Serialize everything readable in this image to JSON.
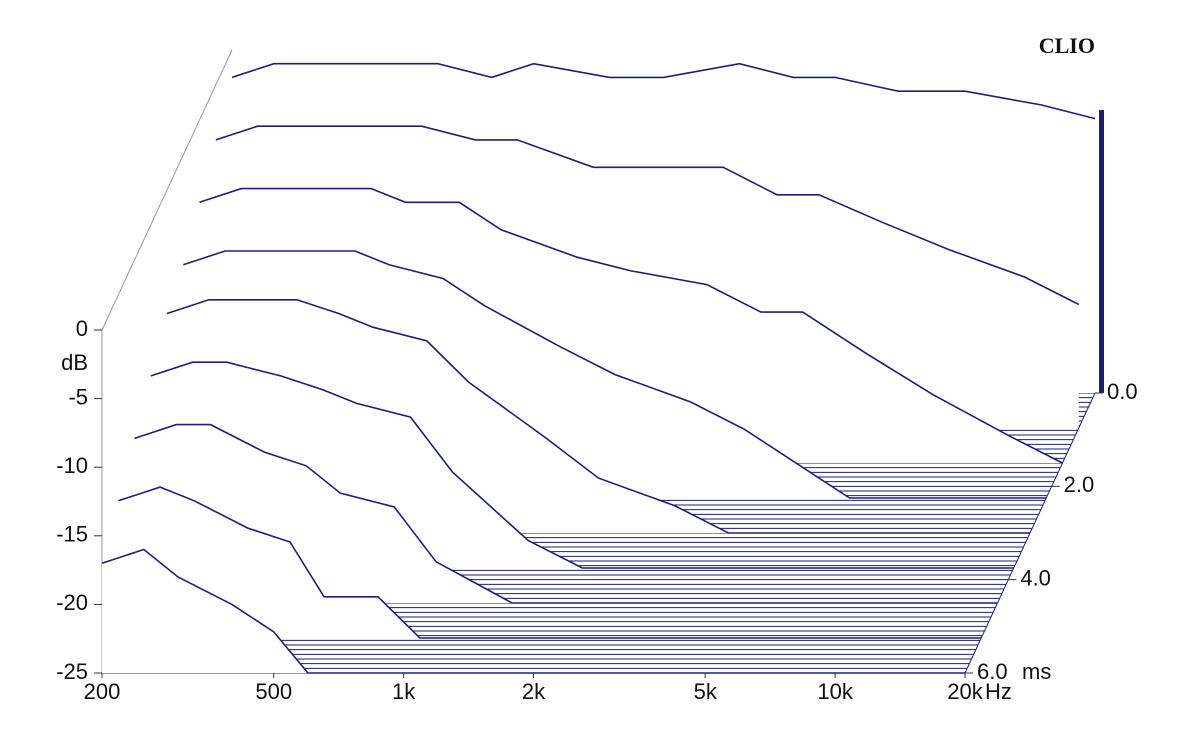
{
  "chart_data": {
    "type": "waterfall",
    "watermark": "CLIO",
    "x_unit": "Hz",
    "y_unit": "dB",
    "z_unit": "ms",
    "color": "#1e1e78",
    "log_x": true,
    "x": [
      200,
      250,
      300,
      400,
      500,
      600,
      800,
      1000,
      1500,
      2000,
      3000,
      4000,
      5000,
      7000,
      10000,
      15000,
      20000
    ],
    "z": [
      0,
      0.75,
      1.5,
      2.25,
      3,
      3.75,
      4.5,
      5.25,
      6
    ],
    "values": [
      [
        -2,
        -1,
        -1,
        -1,
        -1,
        -1,
        -2,
        -1,
        -2,
        -2,
        -1,
        -2,
        -2,
        -3,
        -3,
        -4,
        -5
      ],
      [
        -4,
        -3,
        -3,
        -3,
        -3,
        -3,
        -4,
        -4,
        -6,
        -6,
        -6,
        -8,
        -8,
        -10,
        -12,
        -14,
        -16
      ],
      [
        -6,
        -5,
        -5,
        -5,
        -5,
        -6,
        -6,
        -8,
        -10,
        -11,
        -12,
        -14,
        -14,
        -17,
        -20,
        -23,
        -25
      ],
      [
        -8,
        -7,
        -7,
        -7,
        -7,
        -8,
        -9,
        -11,
        -14,
        -16,
        -18,
        -20,
        -22,
        -25,
        -25,
        -25,
        -25
      ],
      [
        -9,
        -8,
        -8,
        -8,
        -9,
        -10,
        -11,
        -14,
        -18,
        -21,
        -23,
        -25,
        -25,
        -25,
        -25,
        -25,
        -25
      ],
      [
        -11,
        -10,
        -10,
        -11,
        -12,
        -13,
        -14,
        -18,
        -23,
        -25,
        -25,
        -25,
        -25,
        -25,
        -25,
        -25,
        -25
      ],
      [
        -13,
        -12,
        -12,
        -14,
        -15,
        -17,
        -18,
        -22,
        -25,
        -25,
        -25,
        -25,
        -25,
        -25,
        -25,
        -25,
        -25
      ],
      [
        -15,
        -14,
        -15,
        -17,
        -18,
        -22,
        -22,
        -25,
        -25,
        -25,
        -25,
        -25,
        -25,
        -25,
        -25,
        -25,
        -25
      ],
      [
        -17,
        -16,
        -18,
        -20,
        -22,
        -25,
        -25,
        -25,
        -25,
        -25,
        -25,
        -25,
        -25,
        -25,
        -25,
        -25,
        -25
      ]
    ],
    "xlim": [
      200,
      20000
    ],
    "xticks": [
      200,
      500,
      {
        "value": 1000,
        "label": "1k"
      },
      {
        "value": 2000,
        "label": "2k"
      },
      {
        "value": 5000,
        "label": "5k"
      },
      {
        "value": 10000,
        "label": "10k"
      },
      {
        "value": 20000,
        "label": "20k"
      }
    ],
    "ylim": [
      -25,
      0
    ],
    "yticks": [
      0,
      -5,
      -10,
      -15,
      -20,
      -25
    ],
    "zlim": [
      0,
      6
    ],
    "zticks": [
      {
        "value": 0,
        "label": "0.0"
      },
      {
        "value": 2,
        "label": "2.0"
      },
      {
        "value": 4,
        "label": "4.0"
      },
      {
        "value": 6,
        "label": "6.0"
      }
    ]
  }
}
